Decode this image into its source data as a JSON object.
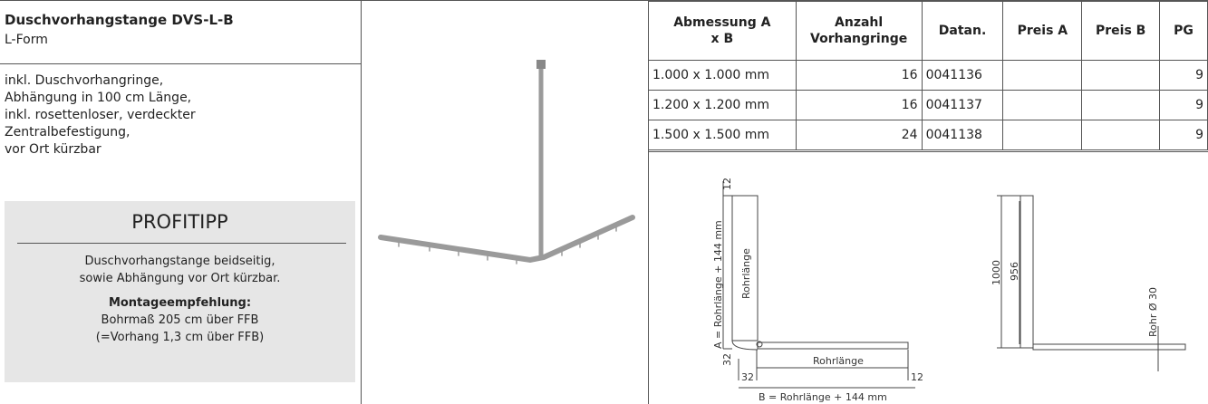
{
  "product": {
    "title": "Duschvorhangstange DVS-L-B",
    "subtitle": "L-Form",
    "description": [
      "inkl. Duschvorhangringe,",
      "Abhängung in 100 cm Länge,",
      "inkl. rosettenloser, verdeckter",
      "Zentralbefestigung,",
      "vor Ort kürzbar"
    ]
  },
  "profitipp": {
    "title": "PROFITIPP",
    "text": [
      "Duschvorhangstange beidseitig,",
      "sowie Abhängung vor Ort kürzbar."
    ],
    "heading": "Montageempfehlung:",
    "lines": [
      "Bohrmaß 205 cm über FFB",
      "(=Vorhang 1,3 cm über FFB)"
    ]
  },
  "table": {
    "headers": [
      [
        "Abmessung A",
        "x B"
      ],
      [
        "Anzahl",
        "Vorhangringe"
      ],
      [
        "Datan."
      ],
      [
        "Preis A"
      ],
      [
        "Preis B"
      ],
      [
        "PG"
      ]
    ],
    "rows": [
      {
        "dim": "1.000 x 1.000 mm",
        "rings": 16,
        "datan": "0041136",
        "pg": 9
      },
      {
        "dim": "1.200 x 1.200 mm",
        "rings": 16,
        "datan": "0041137",
        "pg": 9
      },
      {
        "dim": "1.500 x 1.500 mm",
        "rings": 24,
        "datan": "0041138",
        "pg": 9
      }
    ]
  },
  "drawing": {
    "left": {
      "top_gap": "12",
      "a_label": "A = Rohrlänge + 144 mm",
      "v_pipe": "Rohrlänge",
      "corner_v": "32",
      "corner_h": "32",
      "h_pipe": "Rohrlänge",
      "end_gap": "12",
      "b_label": "B = Rohrlänge + 144 mm"
    },
    "right": {
      "total": "1000",
      "inner": "956",
      "pipe": "Rohr Ø 30"
    }
  }
}
